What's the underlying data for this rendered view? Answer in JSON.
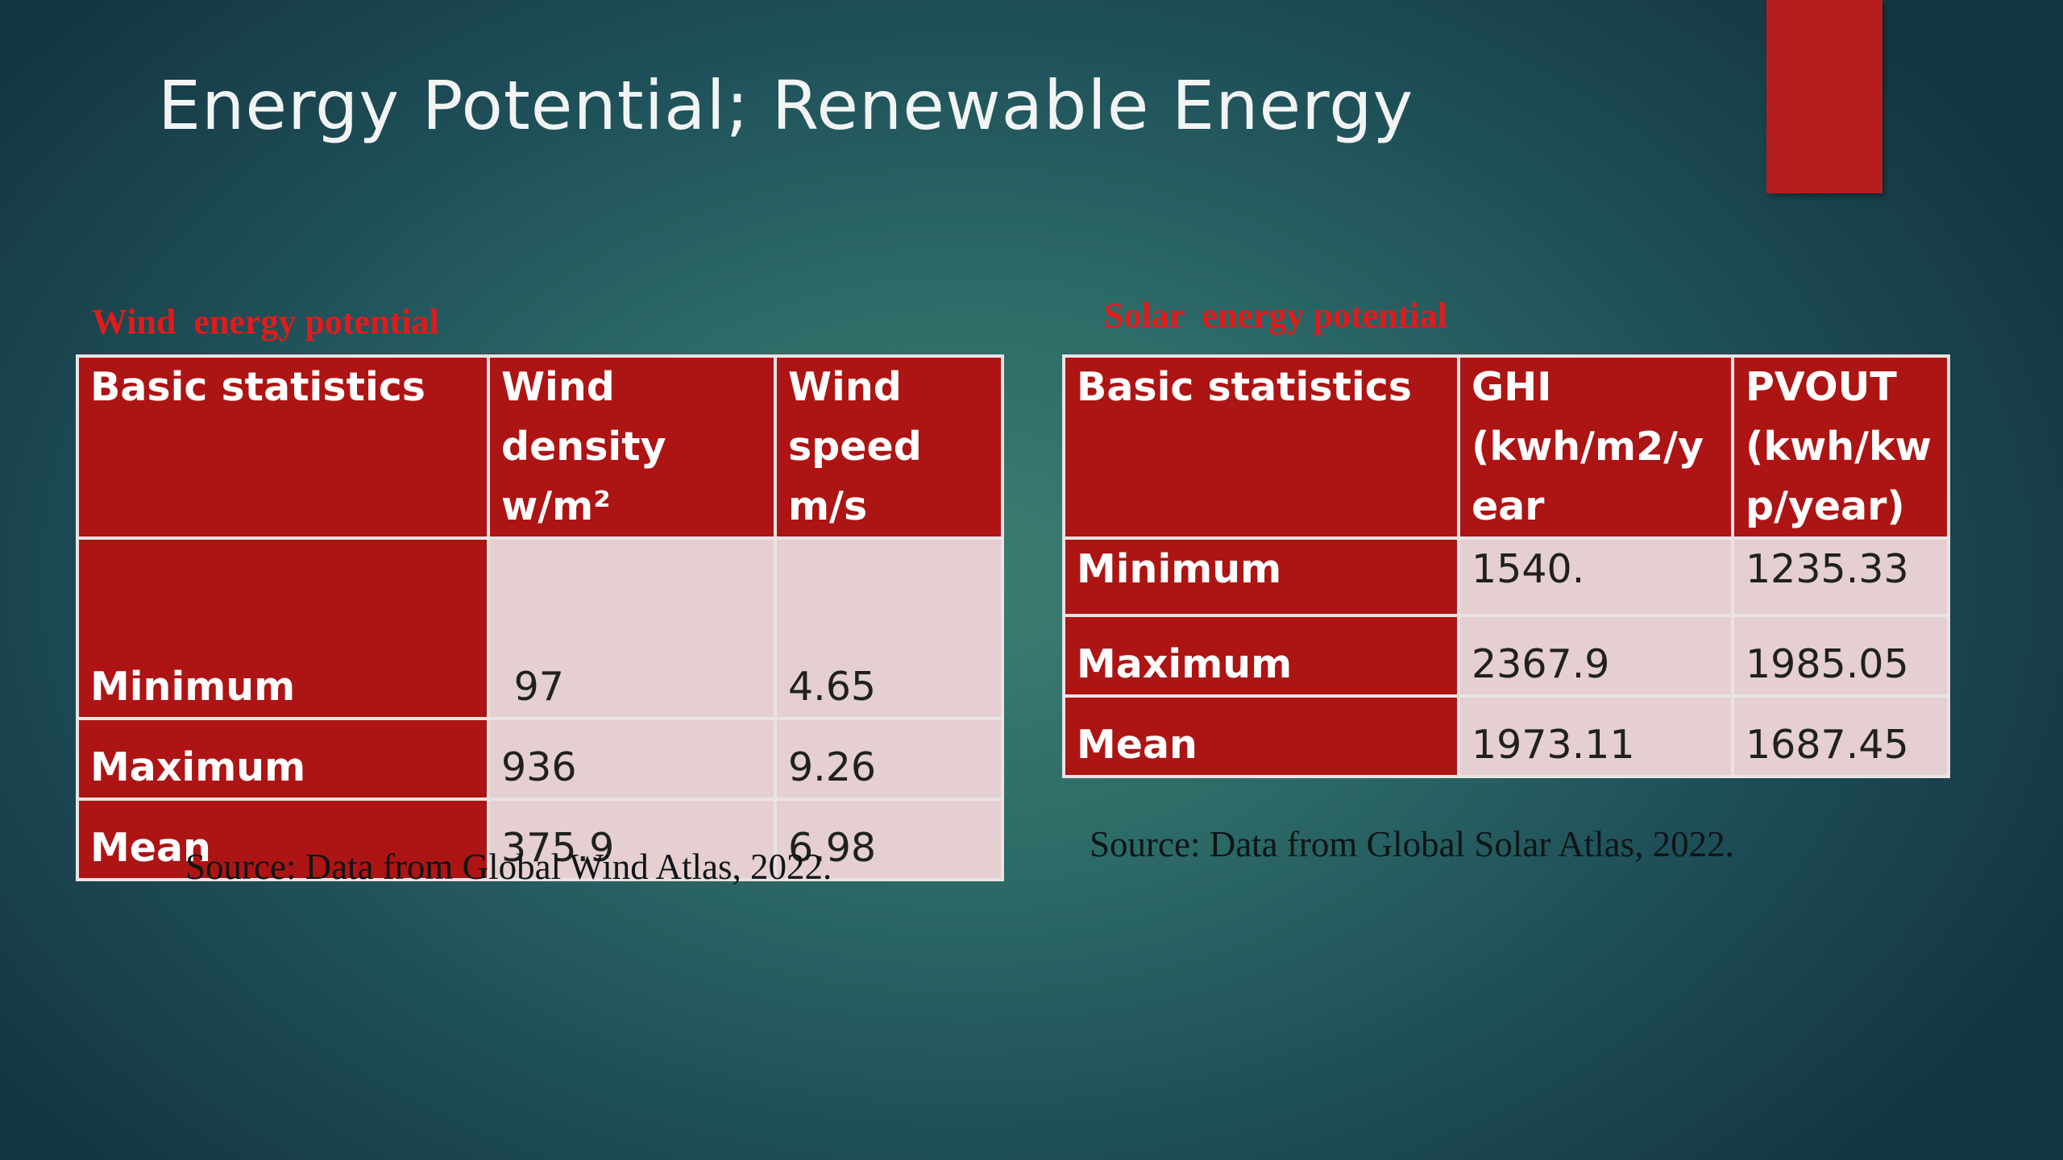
{
  "slide": {
    "title": "Energy Potential; Renewable Energy",
    "accent_color": "#b41e1e"
  },
  "wind": {
    "label": "Wind  energy potential",
    "headers": {
      "stat": "Basic statistics",
      "col2_line1": "Wind density",
      "col2_line2": "w/m²",
      "col3_line1": "Wind",
      "col3_line2": "speed",
      "col3_line3": "m/s"
    },
    "rows": [
      {
        "label": "Minimum",
        "density": " 97",
        "speed": "4.65"
      },
      {
        "label": "Maximum",
        "density": "936",
        "speed": "9.26"
      },
      {
        "label": "Mean",
        "density": "375.9",
        "speed": "6.98"
      }
    ],
    "source": "Source: Data from Global Wind Atlas, 2022."
  },
  "solar": {
    "label": "Solar  energy potential",
    "headers": {
      "stat": "Basic statistics",
      "col2_line1": "GHI",
      "col2_line2": "(kwh/m2/y",
      "col2_line3": "ear",
      "col3_line1": "PVOUT",
      "col3_line2": "(kwh/kw",
      "col3_line3": "p/year)"
    },
    "rows": [
      {
        "label": "Minimum",
        "ghi": "1540.",
        "pvout": "1235.33"
      },
      {
        "label": "Maximum",
        "ghi": "2367.9",
        "pvout": "1985.05"
      },
      {
        "label": "Mean",
        "ghi": "1973.11",
        "pvout": "1687.45"
      }
    ],
    "source": "Source: Data from Global Solar Atlas, 2022."
  },
  "colors": {
    "header_red": "#ad1414",
    "cell_pink": "#e5cfd1",
    "label_red": "#e11b1b"
  }
}
